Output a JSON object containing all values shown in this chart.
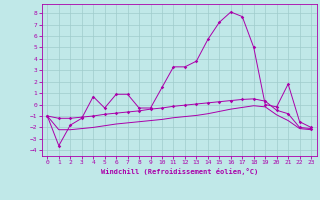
{
  "xlabel": "Windchill (Refroidissement éolien,°C)",
  "background_color": "#c0e8e8",
  "grid_color": "#a0cccc",
  "line_color": "#aa00aa",
  "xlim": [
    -0.5,
    23.5
  ],
  "ylim": [
    -4.5,
    8.8
  ],
  "xticks": [
    0,
    1,
    2,
    3,
    4,
    5,
    6,
    7,
    8,
    9,
    10,
    11,
    12,
    13,
    14,
    15,
    16,
    17,
    18,
    19,
    20,
    21,
    22,
    23
  ],
  "yticks": [
    -4,
    -3,
    -2,
    -1,
    0,
    1,
    2,
    3,
    4,
    5,
    6,
    7,
    8
  ],
  "line1_x": [
    0,
    1,
    2,
    3,
    4,
    5,
    6,
    7,
    8,
    9,
    10,
    11,
    12,
    13,
    14,
    15,
    16,
    17,
    18,
    19,
    20,
    21,
    22,
    23
  ],
  "line1_y": [
    -1.0,
    -3.6,
    -1.8,
    -1.2,
    0.7,
    -0.3,
    0.9,
    0.9,
    -0.3,
    -0.3,
    1.5,
    3.3,
    3.3,
    3.8,
    5.7,
    7.2,
    8.1,
    7.7,
    5.0,
    0.0,
    -0.2,
    1.8,
    -1.5,
    -2.0
  ],
  "line2_x": [
    0,
    1,
    2,
    3,
    4,
    5,
    6,
    7,
    8,
    9,
    10,
    11,
    12,
    13,
    14,
    15,
    16,
    17,
    18,
    19,
    20,
    21,
    22,
    23
  ],
  "line2_y": [
    -1.0,
    -1.2,
    -1.2,
    -1.1,
    -1.0,
    -0.85,
    -0.75,
    -0.65,
    -0.55,
    -0.4,
    -0.3,
    -0.15,
    -0.05,
    0.05,
    0.15,
    0.25,
    0.35,
    0.45,
    0.5,
    0.3,
    -0.5,
    -0.8,
    -2.0,
    -2.1
  ],
  "line3_x": [
    0,
    1,
    2,
    3,
    4,
    5,
    6,
    7,
    8,
    9,
    10,
    11,
    12,
    13,
    14,
    15,
    16,
    17,
    18,
    19,
    20,
    21,
    22,
    23
  ],
  "line3_y": [
    -1.0,
    -2.2,
    -2.2,
    -2.1,
    -2.0,
    -1.85,
    -1.7,
    -1.6,
    -1.5,
    -1.4,
    -1.3,
    -1.15,
    -1.05,
    -0.95,
    -0.8,
    -0.6,
    -0.4,
    -0.25,
    -0.1,
    -0.2,
    -0.9,
    -1.4,
    -2.1,
    -2.2
  ]
}
